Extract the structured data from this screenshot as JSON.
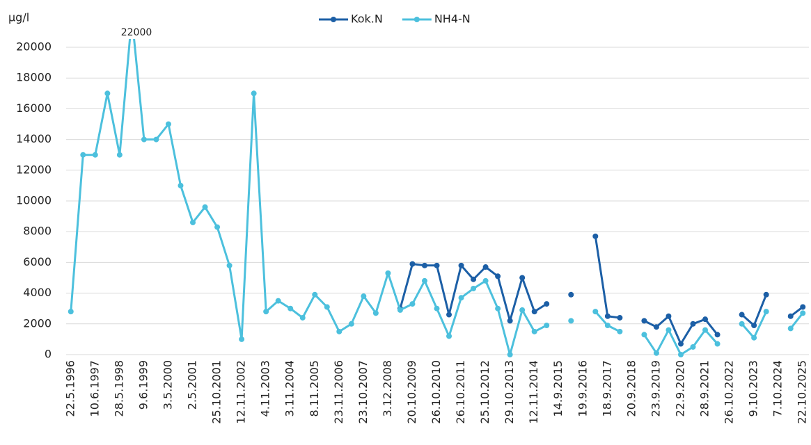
{
  "chart_data": {
    "type": "line",
    "y_label": "µg/l",
    "annotation": "22000",
    "categories": [
      "22.5.1996",
      null,
      "10.6.1997",
      null,
      "28.5.1998",
      null,
      "9.6.1999",
      null,
      "3.5.2000",
      null,
      "2.5.2001",
      null,
      "25.10.2001",
      null,
      "12.11.2002",
      null,
      "4.11.2003",
      null,
      "3.11.2004",
      null,
      "8.11.2005",
      null,
      "23.11.2006",
      null,
      "23.10.2007",
      null,
      "3.12.2008",
      null,
      "20.10.2009",
      null,
      "26.10.2010",
      null,
      "26.10.2011",
      null,
      "25.10.2012",
      null,
      "29.10.2013",
      null,
      "12.11.2014",
      null,
      "14.9.2015",
      null,
      "19.9.2016",
      null,
      "18.9.2017",
      null,
      "20.9.2018",
      null,
      "23.9.2019",
      null,
      "22.9.2020",
      null,
      "28.9.2021",
      null,
      "26.10.2022",
      null,
      "9.10.2023",
      null,
      "7.10.2024",
      null,
      "22.10.2025"
    ],
    "series": [
      {
        "name": "Kok.N",
        "color": "#1c5fa6",
        "values": [
          null,
          null,
          null,
          null,
          null,
          null,
          null,
          null,
          null,
          null,
          null,
          null,
          null,
          null,
          null,
          null,
          null,
          null,
          null,
          null,
          null,
          null,
          null,
          null,
          null,
          null,
          null,
          3000,
          5900,
          5800,
          5800,
          2600,
          5800,
          4900,
          5700,
          5100,
          2200,
          5000,
          2800,
          3300,
          null,
          3900,
          null,
          7700,
          2500,
          2400,
          null,
          2200,
          1800,
          2500,
          700,
          2000,
          2300,
          1300,
          null,
          2600,
          1900,
          3900,
          null,
          2500,
          3100
        ]
      },
      {
        "name": "NH4-N",
        "color": "#4cc0dd",
        "values": [
          2800,
          13000,
          13000,
          17000,
          13000,
          22000,
          14000,
          14000,
          15000,
          11000,
          8600,
          9600,
          8300,
          5800,
          1000,
          17000,
          2800,
          3500,
          3000,
          2400,
          3900,
          3100,
          1500,
          2000,
          3800,
          2700,
          5300,
          2900,
          3300,
          4800,
          3000,
          1200,
          3700,
          4300,
          4800,
          3000,
          0,
          2900,
          1500,
          1900,
          null,
          2200,
          null,
          2800,
          1900,
          1500,
          null,
          1300,
          100,
          1600,
          0,
          500,
          1600,
          700,
          null,
          2000,
          1100,
          2800,
          null,
          1700,
          2700
        ]
      }
    ],
    "ylim": [
      0,
      20000
    ],
    "yticks": [
      0,
      2000,
      4000,
      6000,
      8000,
      10000,
      12000,
      14000,
      16000,
      18000,
      20000
    ],
    "grid": true,
    "legend": "top"
  }
}
